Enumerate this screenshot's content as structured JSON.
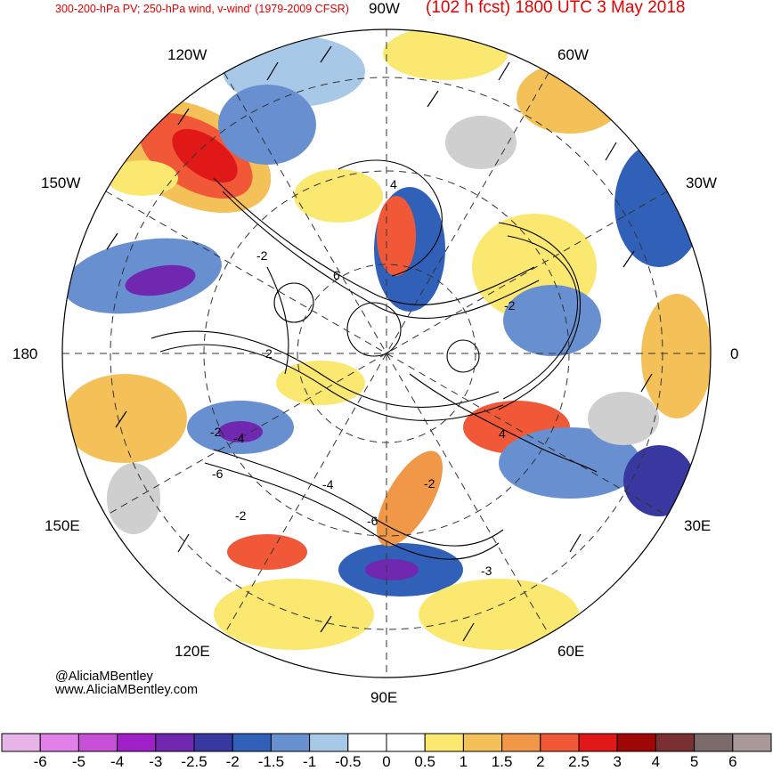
{
  "header": {
    "left": "300-200-hPa PV; 250-hPa wind, v-wind' (1979-2009 CFSR)",
    "right": "(102 h fcst) 1800 UTC 3 May 2018"
  },
  "longitude_labels": {
    "n90w": "90W",
    "n60w": "60W",
    "n30w": "30W",
    "n0": "0",
    "n30e": "30E",
    "n60e": "60E",
    "n90e": "90E",
    "n120e": "120E",
    "n150e": "150E",
    "n180": "180",
    "n150w": "150W",
    "n120w": "120W"
  },
  "contour_labels": [
    "4",
    "-2",
    "6",
    "-2",
    "2",
    "-2",
    "-4",
    "-6",
    "-4",
    "-2",
    "-6",
    "-3",
    "-2",
    "4"
  ],
  "credits": {
    "handle": "@AliciaMBentley",
    "site": "www.AliciaMBentley.com"
  },
  "colorbar": {
    "ticks": [
      "-6",
      "-5",
      "-4",
      "-3",
      "-2.5",
      "-2",
      "-1.5",
      "-1",
      "-0.5",
      "0",
      "0.5",
      "1",
      "1.5",
      "2",
      "2.5",
      "3",
      "4",
      "5",
      "6"
    ],
    "colors": [
      "#e8b4e8",
      "#e080e8",
      "#c850d8",
      "#a020c8",
      "#7028b0",
      "#3838a0",
      "#3060b8",
      "#6890d0",
      "#a8c8e8",
      "#ffffff",
      "#ffffff",
      "#fbe870",
      "#f4c058",
      "#f09848",
      "#f05838",
      "#e01818",
      "#a00808",
      "#7a3030",
      "#7a6a6a",
      "#a89898"
    ]
  }
}
